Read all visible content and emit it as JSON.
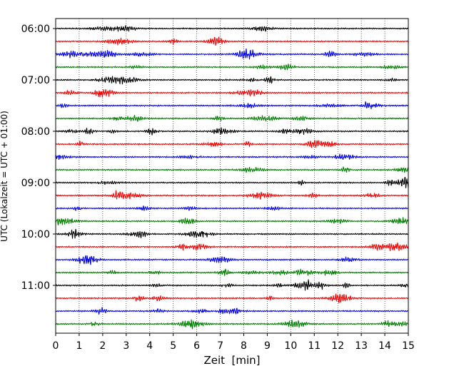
{
  "chart_data": {
    "type": "line",
    "title": "",
    "xlabel": "Zeit  [min]",
    "ylabel": "UTC (Lokalzeit = UTC + 01:00)",
    "xlim": [
      0,
      15
    ],
    "x_ticks": [
      0,
      1,
      2,
      3,
      4,
      5,
      6,
      7,
      8,
      9,
      10,
      11,
      12,
      13,
      14,
      15
    ],
    "y_ticks": [
      "06:00",
      "07:00",
      "08:00",
      "09:00",
      "10:00",
      "11:00"
    ],
    "trace_start": "06:00",
    "trace_end": "11:45",
    "trace_interval_minutes": 15,
    "trace_colors": [
      "#000000",
      "#ff0000",
      "#0000ff",
      "#008000"
    ],
    "grid": "vertical-dotted",
    "legend": "none"
  }
}
